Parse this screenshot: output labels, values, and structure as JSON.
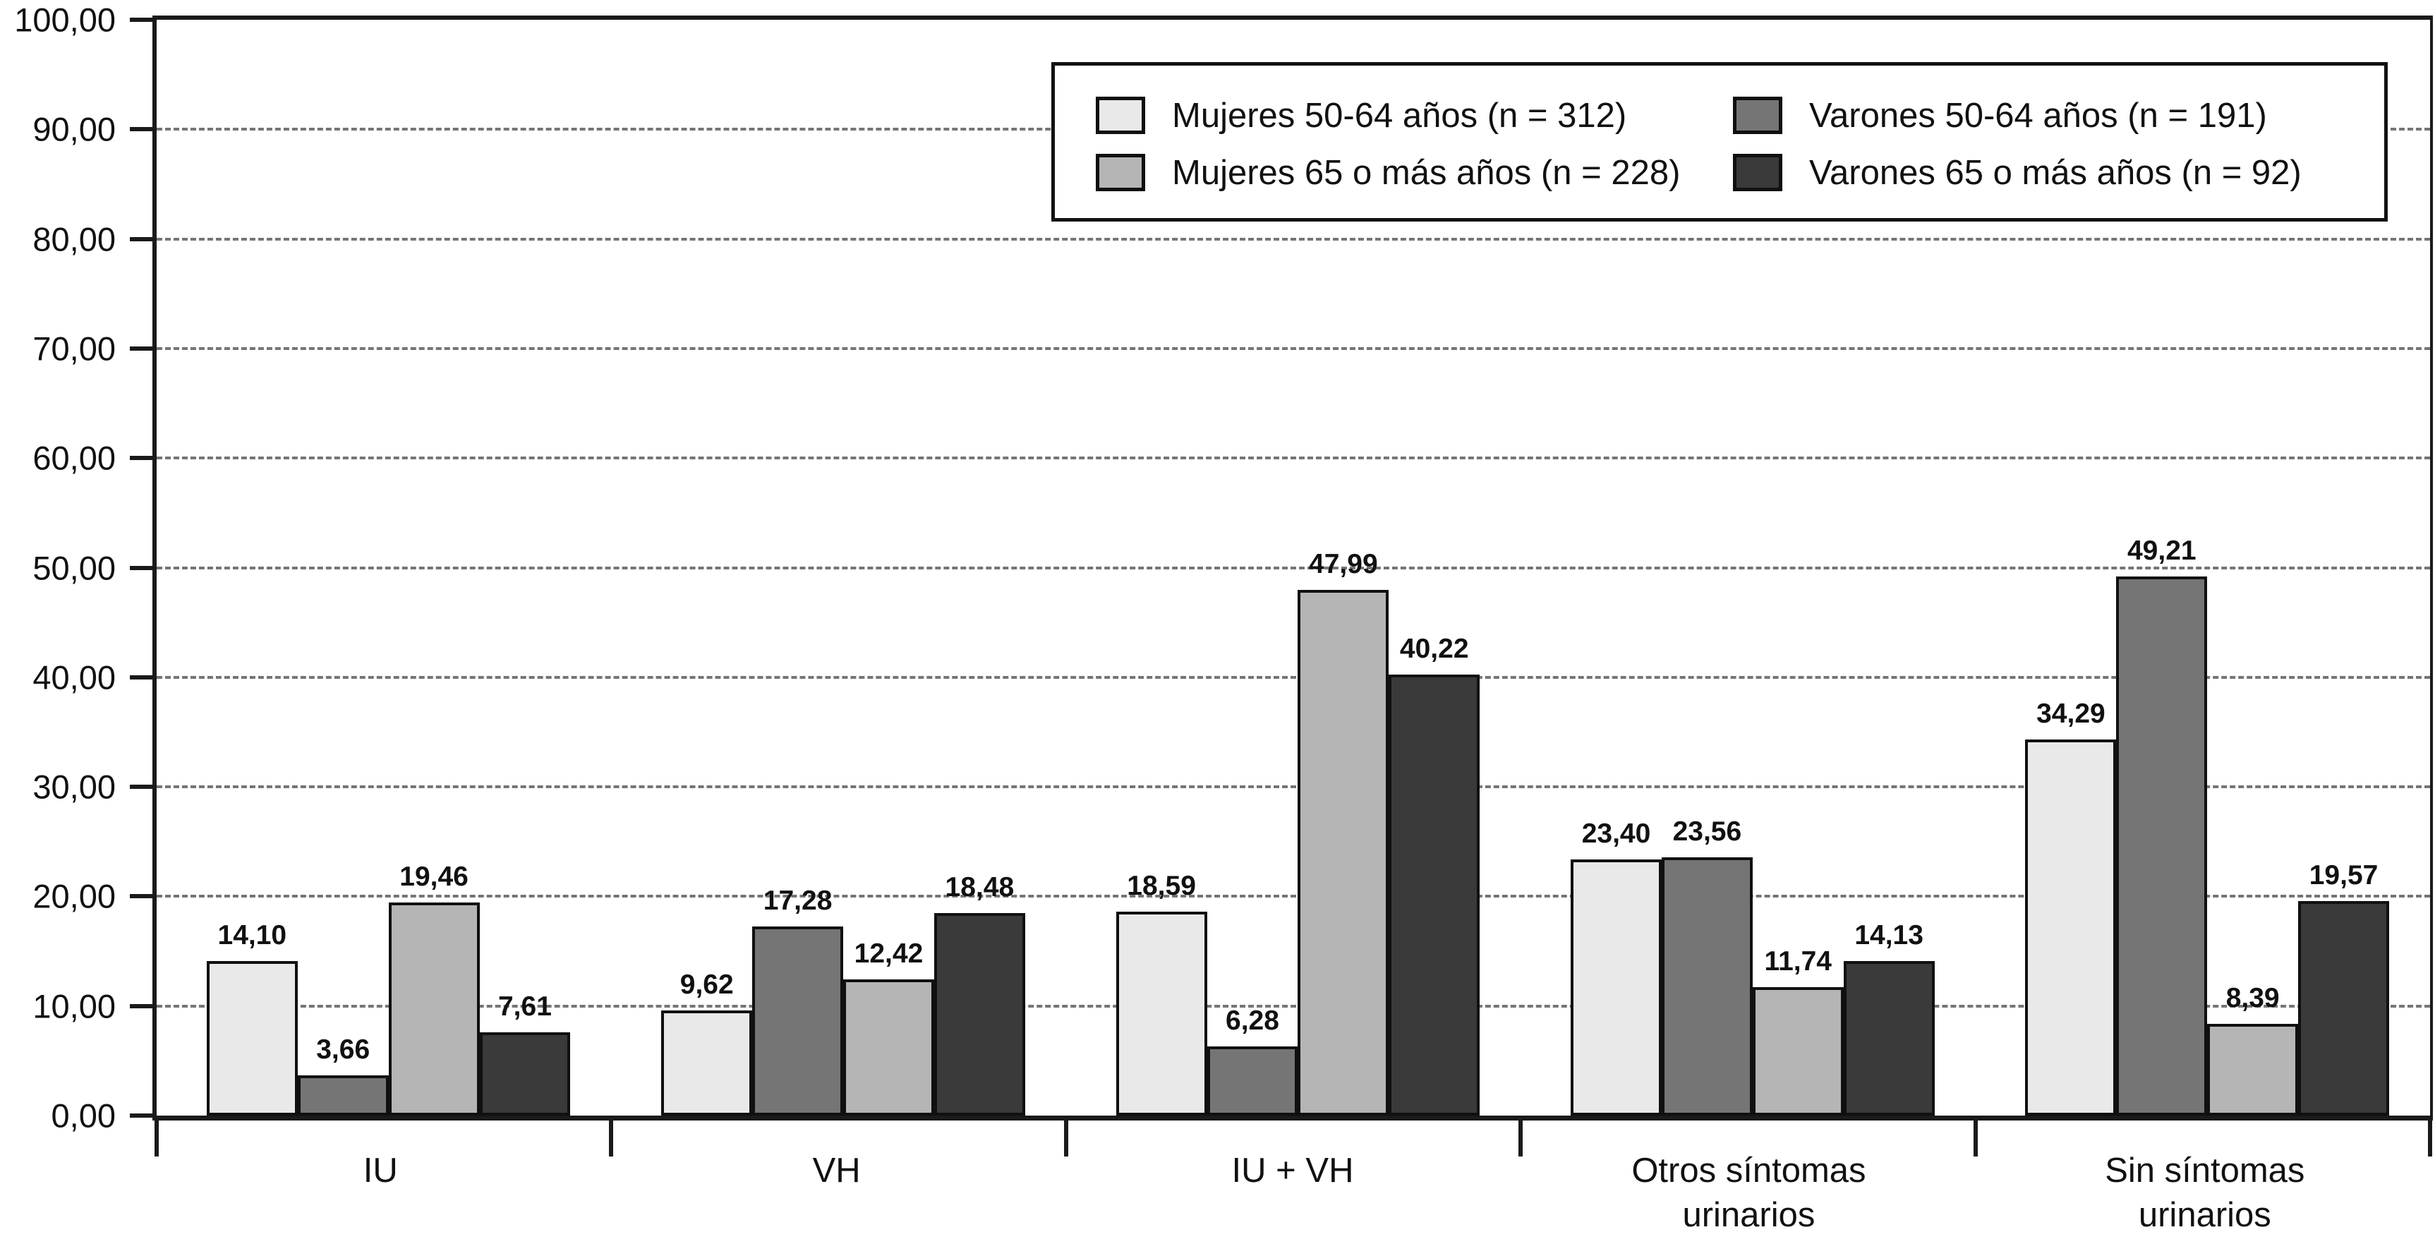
{
  "chart_data": {
    "type": "bar",
    "title": "",
    "xlabel": "",
    "ylabel": "",
    "grid": "horizontal-dashed",
    "legend_position": "top-right-inside",
    "categories": [
      "IU",
      "VH",
      "IU + VH",
      "Otros síntomas\nurinarios",
      "Sin síntomas\nurinarios"
    ],
    "series": [
      {
        "name": "Mujeres 50-64 años (n = 312)",
        "color": "#e9e9e9",
        "values": [
          14.1,
          9.62,
          18.59,
          23.4,
          34.29
        ],
        "labels": [
          "14,10",
          "9,62",
          "18,59",
          "23,40",
          "34,29"
        ]
      },
      {
        "name": "Varones 50-64 años (n = 191)",
        "color": "#757575",
        "values": [
          3.66,
          17.28,
          6.28,
          23.56,
          49.21
        ],
        "labels": [
          "3,66",
          "17,28",
          "6,28",
          "23,56",
          "49,21"
        ]
      },
      {
        "name": "Mujeres 65 o más años (n = 228)",
        "color": "#b5b5b5",
        "values": [
          19.46,
          12.42,
          47.99,
          11.74,
          8.39
        ],
        "labels": [
          "19,46",
          "12,42",
          "47,99",
          "11,74",
          "8,39"
        ]
      },
      {
        "name": "Varones 65 o más años (n = 92)",
        "color": "#3a3a3a",
        "values": [
          7.61,
          18.48,
          40.22,
          14.13,
          19.57
        ],
        "labels": [
          "7,61",
          "18,48",
          "40,22",
          "14,13",
          "19,57"
        ]
      }
    ],
    "yaxis": {
      "max": 100,
      "ticks": [
        {
          "value": 0,
          "label": "0,00"
        },
        {
          "value": 10,
          "label": "10,00"
        },
        {
          "value": 20,
          "label": "20,00"
        },
        {
          "value": 30,
          "label": "30,00"
        },
        {
          "value": 40,
          "label": "40,00"
        },
        {
          "value": 50,
          "label": "50,00"
        },
        {
          "value": 60,
          "label": "60,00"
        },
        {
          "value": 70,
          "label": "70,00"
        },
        {
          "value": 80,
          "label": "80,00"
        },
        {
          "value": 90,
          "label": "90,00"
        },
        {
          "value": 100,
          "label": "100,00"
        }
      ]
    }
  }
}
